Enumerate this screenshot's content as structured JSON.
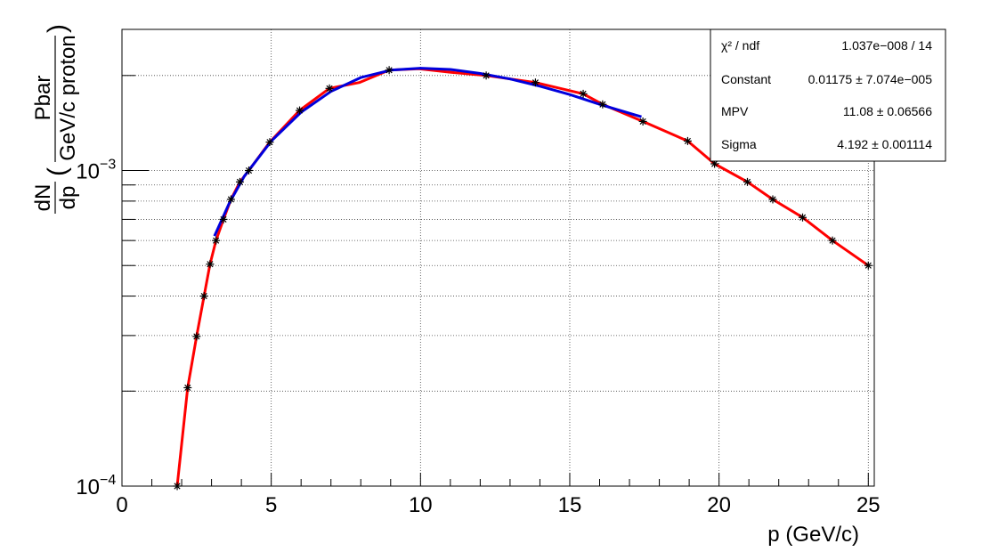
{
  "chart_data": {
    "type": "line",
    "x_label": "p (GeV/c)",
    "y_label_prefix": "dN",
    "y_label_prefix_den": "dp",
    "y_label_num": "Pbar",
    "y_label_den": "GeV/c proton",
    "xlim": [
      0,
      25.2
    ],
    "ylim": [
      0.0001,
      0.0028
    ],
    "y_scale": "log",
    "grid": true,
    "x_ticks": [
      "0",
      "5",
      "10",
      "15",
      "20",
      "25"
    ],
    "y_tick_mantissa": "10",
    "y_ticks_exp": [
      "−4",
      "−3"
    ],
    "series": [
      {
        "color": "#ff0000",
        "x": [
          1.85,
          2.2,
          2.5,
          2.75,
          2.95,
          3.15,
          3.4,
          3.65,
          3.95,
          4.25,
          4.95,
          5.95,
          6.95,
          7.95,
          8.95,
          9.95,
          10.95,
          12.2,
          13.85,
          15.45,
          16.1,
          17.45,
          18.95,
          19.85,
          20.95,
          21.8,
          22.8,
          23.8,
          25.0
        ],
        "y": [
          0.0001,
          0.000205,
          0.000298,
          0.0004,
          0.000505,
          0.0006,
          0.0007,
          0.00081,
          0.00092,
          0.001,
          0.00123,
          0.00155,
          0.00182,
          0.0019,
          0.00208,
          0.0021,
          0.00205,
          0.002,
          0.0019,
          0.00175,
          0.00162,
          0.00143,
          0.00124,
          0.00105,
          0.00092,
          0.00081,
          0.00071,
          0.0006,
          0.0005
        ]
      },
      {
        "color": "#0000dd",
        "x": [
          3.1,
          3.6,
          4.1,
          5.0,
          6.0,
          7.0,
          8.0,
          9.0,
          10.0,
          11.0,
          12.0,
          13.0,
          14.0,
          15.0,
          16.0,
          17.4
        ],
        "y": [
          0.00062,
          0.00079,
          0.00096,
          0.00124,
          0.00153,
          0.00178,
          0.00197,
          0.00208,
          0.00211,
          0.00209,
          0.00203,
          0.00195,
          0.00185,
          0.00174,
          0.00162,
          0.00148
        ]
      }
    ],
    "points": {
      "x": [
        1.85,
        2.2,
        2.5,
        2.75,
        2.95,
        3.15,
        3.4,
        3.65,
        3.95,
        4.25,
        4.95,
        5.95,
        6.95,
        8.95,
        12.2,
        13.85,
        15.45,
        16.1,
        17.45,
        18.95,
        19.85,
        20.95,
        21.8,
        22.8,
        23.8,
        25.0
      ],
      "y": [
        0.0001,
        0.000205,
        0.000298,
        0.0004,
        0.000505,
        0.0006,
        0.0007,
        0.00081,
        0.00092,
        0.001,
        0.00123,
        0.00155,
        0.00182,
        0.00208,
        0.002,
        0.0019,
        0.00175,
        0.00162,
        0.00143,
        0.00124,
        0.00105,
        0.00092,
        0.00081,
        0.00071,
        0.0006,
        0.0005
      ]
    },
    "stats_box": [
      {
        "label": "χ² / ndf",
        "value": "1.037e−008 / 14"
      },
      {
        "label": "Constant",
        "value": "0.01175 ± 7.074e−005"
      },
      {
        "label": "MPV",
        "value": "11.08 ± 0.06566"
      },
      {
        "label": "Sigma",
        "value": "4.192 ± 0.001114"
      }
    ]
  }
}
